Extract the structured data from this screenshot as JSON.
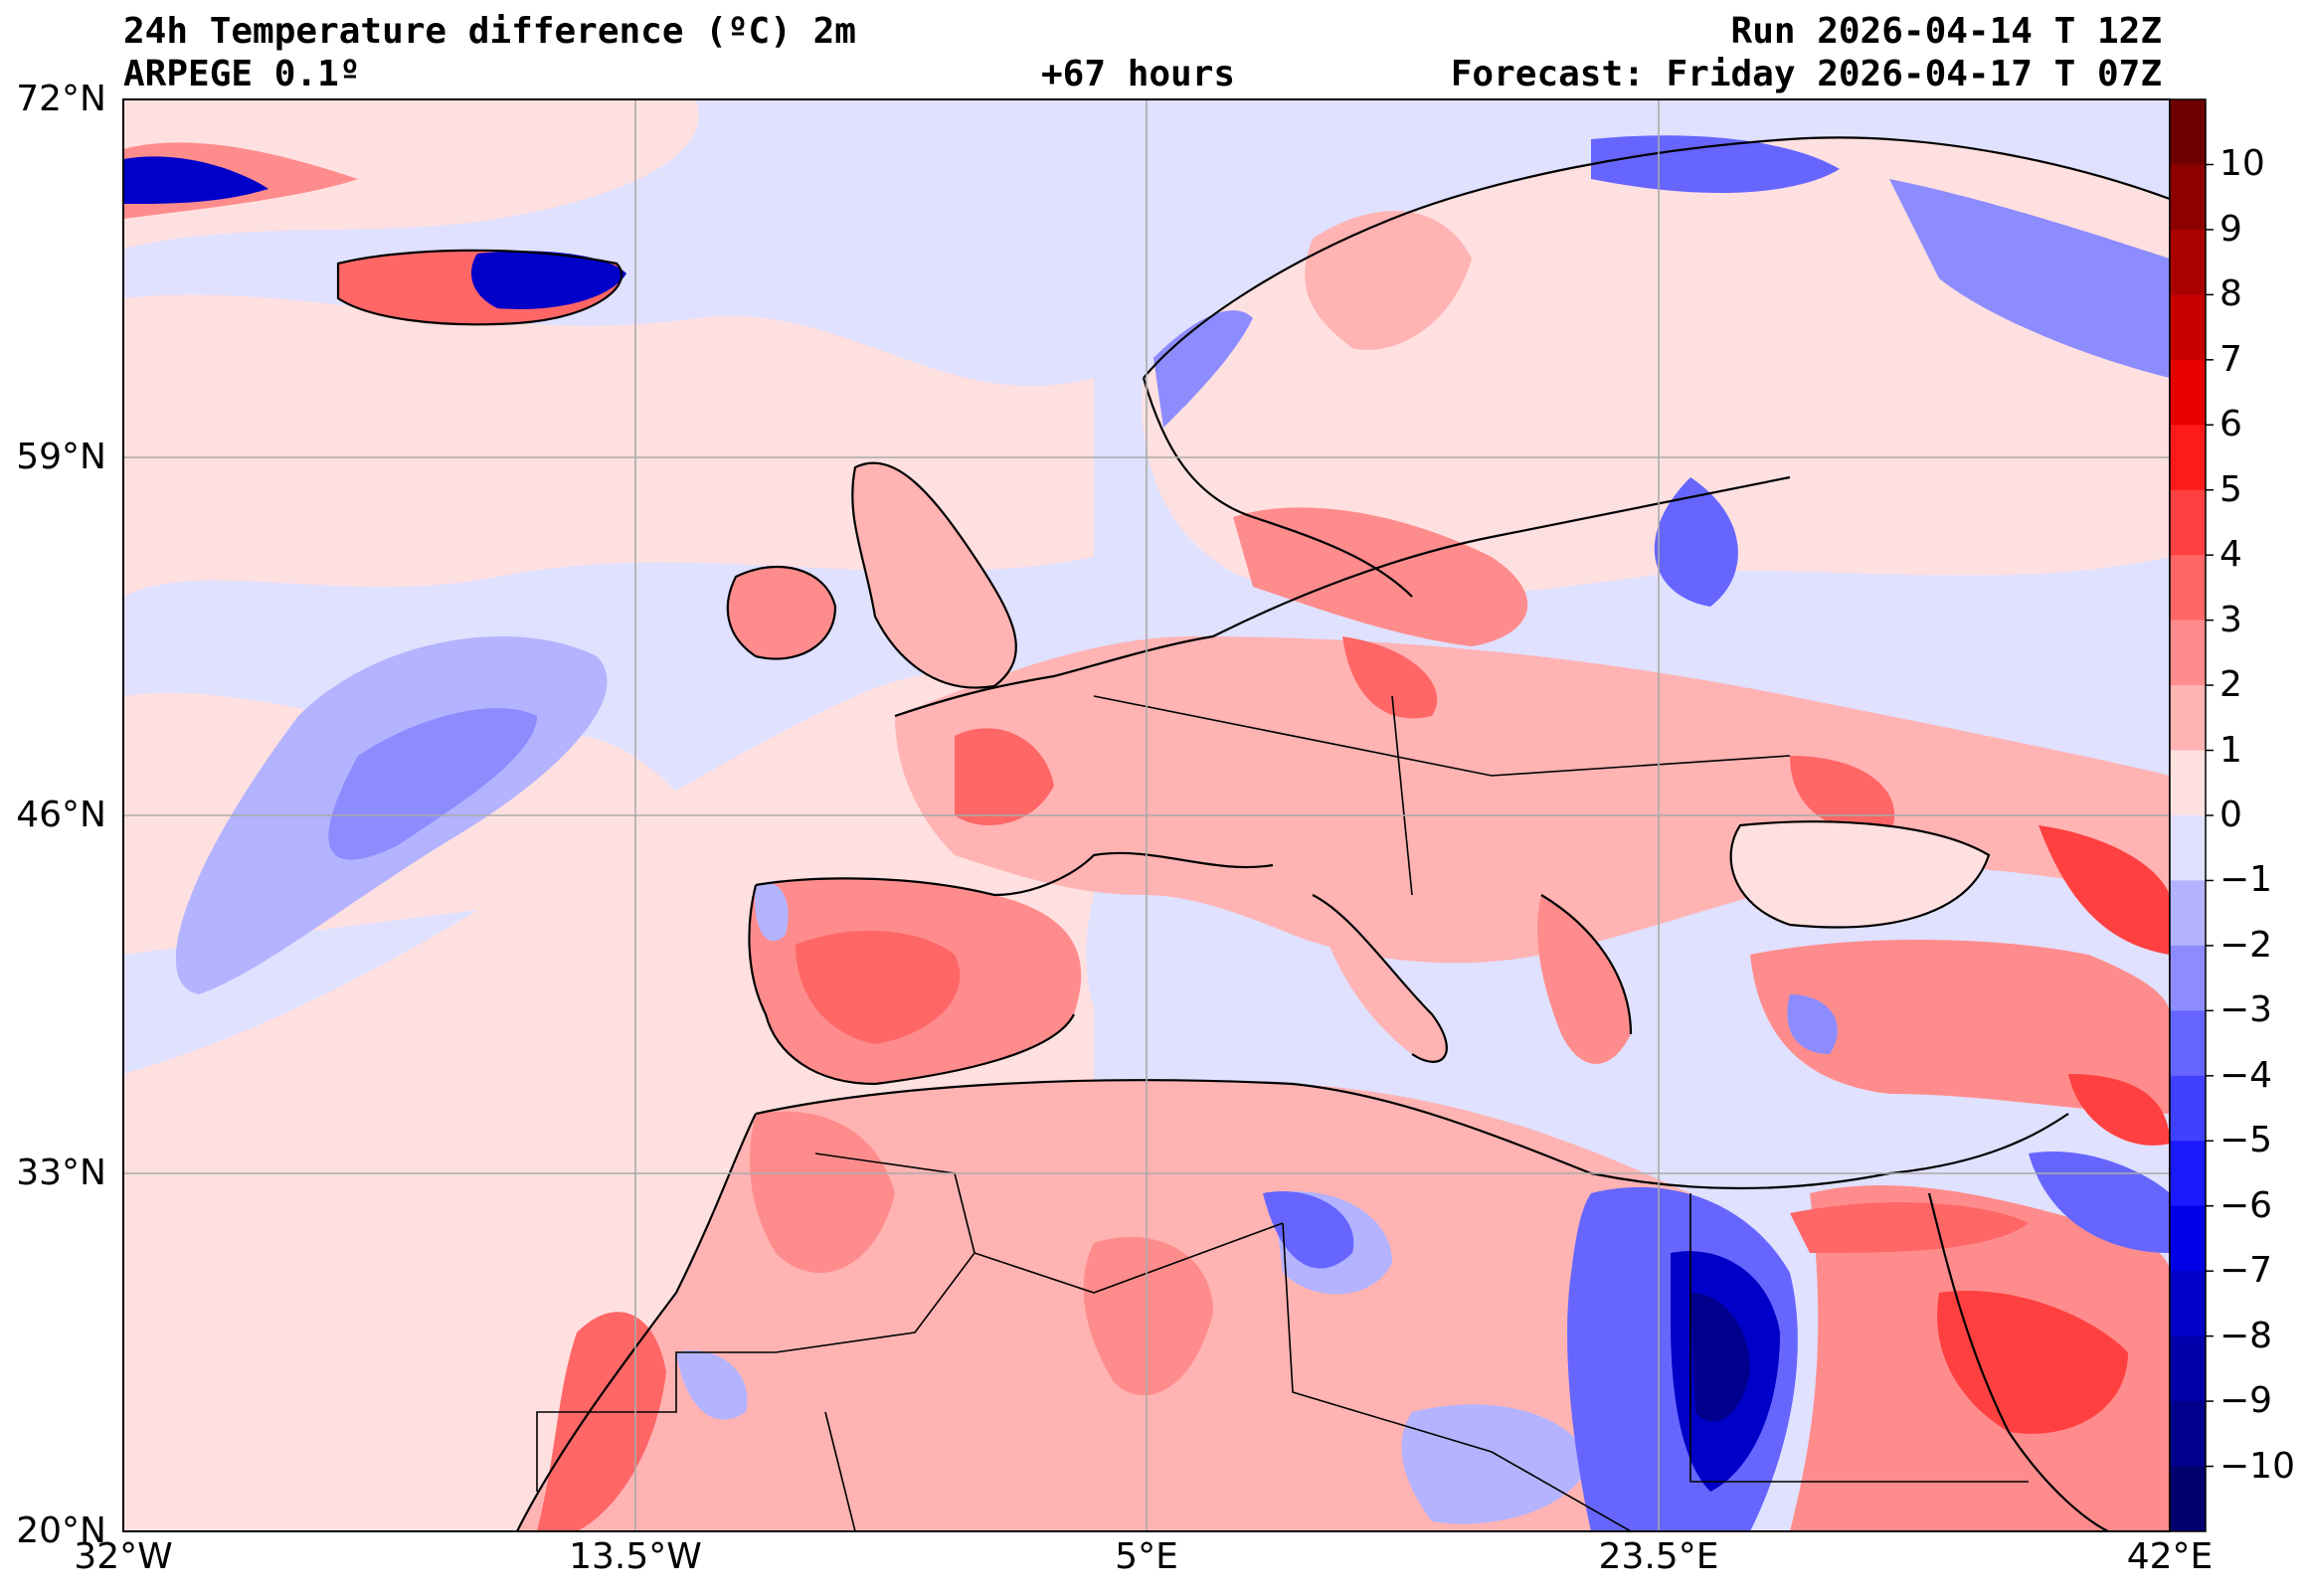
{
  "header": {
    "title": "24h Temperature difference (ºC) 2m",
    "model": "ARPEGE 0.1º",
    "lead": "+67 hours",
    "run": "Run 2026-04-14 T 12Z",
    "forecast": "Forecast: Friday 2026-04-17 T 07Z"
  },
  "axes": {
    "lat_labels": [
      "72°N",
      "59°N",
      "46°N",
      "33°N",
      "20°N"
    ],
    "lon_labels": [
      "32°W",
      "13.5°W",
      "5°E",
      "23.5°E",
      "42°E"
    ]
  },
  "colorbar": {
    "tick_labels": [
      "10",
      "9",
      "8",
      "7",
      "6",
      "5",
      "4",
      "3",
      "2",
      "1",
      "0",
      "−1",
      "−2",
      "−3",
      "−4",
      "−5",
      "−6",
      "−7",
      "−8",
      "−9",
      "−10"
    ],
    "colors": [
      "#6e0000",
      "#8c0000",
      "#aa0000",
      "#c80000",
      "#e60000",
      "#ff1a1a",
      "#ff4040",
      "#ff6666",
      "#ff8c8c",
      "#ffb3b3",
      "#ffe0e0",
      "#e0e0ff",
      "#b3b3ff",
      "#8c8cff",
      "#6666ff",
      "#4040ff",
      "#1a1aff",
      "#0000e6",
      "#0000c8",
      "#0000aa",
      "#00008c",
      "#00006e"
    ]
  },
  "map": {
    "ocean_fill": "#e0e0ff",
    "land_warm": "#ffb3b3",
    "land_hot": "#ff6666",
    "cold": "#8c8cff",
    "very_cold": "#0000c8"
  }
}
